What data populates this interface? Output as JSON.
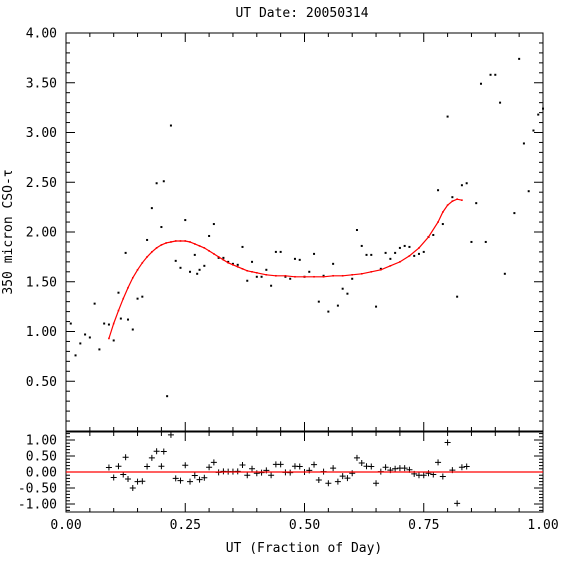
{
  "chart_data": [
    {
      "type": "scatter",
      "title": "UT Date: 20050314",
      "ylabel": "350 micron CSO-τ",
      "xlabel": "",
      "xlim": [
        0.0,
        1.0
      ],
      "ylim": [
        0.0,
        4.0
      ],
      "xticks": [
        "0.00",
        "0.25",
        "0.50",
        "0.75",
        "1.00"
      ],
      "yticks": [
        "0.50",
        "1.00",
        "1.50",
        "2.00",
        "2.50",
        "3.00",
        "3.50",
        "4.00"
      ],
      "series": [
        {
          "marker": "dot",
          "color": "#000000",
          "points": [
            [
              0.01,
              1.08
            ],
            [
              0.02,
              0.76
            ],
            [
              0.03,
              0.88
            ],
            [
              0.04,
              0.97
            ],
            [
              0.05,
              0.94
            ],
            [
              0.06,
              1.28
            ],
            [
              0.07,
              0.82
            ],
            [
              0.08,
              1.08
            ],
            [
              0.09,
              1.07
            ],
            [
              0.1,
              0.91
            ],
            [
              0.11,
              1.39
            ],
            [
              0.115,
              1.13
            ],
            [
              0.125,
              1.79
            ],
            [
              0.13,
              1.12
            ],
            [
              0.14,
              1.02
            ],
            [
              0.15,
              1.33
            ],
            [
              0.16,
              1.35
            ],
            [
              0.17,
              1.92
            ],
            [
              0.18,
              2.24
            ],
            [
              0.19,
              2.49
            ],
            [
              0.2,
              2.05
            ],
            [
              0.205,
              2.51
            ],
            [
              0.212,
              0.35
            ],
            [
              0.22,
              3.07
            ],
            [
              0.23,
              1.71
            ],
            [
              0.24,
              1.64
            ],
            [
              0.25,
              2.12
            ],
            [
              0.26,
              1.6
            ],
            [
              0.27,
              1.77
            ],
            [
              0.275,
              1.58
            ],
            [
              0.28,
              1.62
            ],
            [
              0.29,
              1.66
            ],
            [
              0.3,
              1.96
            ],
            [
              0.31,
              2.08
            ],
            [
              0.32,
              1.74
            ],
            [
              0.33,
              1.74
            ],
            [
              0.34,
              1.7
            ],
            [
              0.35,
              1.68
            ],
            [
              0.36,
              1.67
            ],
            [
              0.37,
              1.85
            ],
            [
              0.38,
              1.51
            ],
            [
              0.39,
              1.7
            ],
            [
              0.4,
              1.55
            ],
            [
              0.41,
              1.55
            ],
            [
              0.42,
              1.62
            ],
            [
              0.43,
              1.46
            ],
            [
              0.44,
              1.8
            ],
            [
              0.45,
              1.8
            ],
            [
              0.46,
              1.55
            ],
            [
              0.47,
              1.53
            ],
            [
              0.48,
              1.73
            ],
            [
              0.49,
              1.72
            ],
            [
              0.5,
              1.55
            ],
            [
              0.51,
              1.6
            ],
            [
              0.52,
              1.78
            ],
            [
              0.53,
              1.3
            ],
            [
              0.54,
              1.56
            ],
            [
              0.55,
              1.2
            ],
            [
              0.56,
              1.68
            ],
            [
              0.57,
              1.26
            ],
            [
              0.58,
              1.43
            ],
            [
              0.59,
              1.38
            ],
            [
              0.6,
              1.53
            ],
            [
              0.61,
              2.02
            ],
            [
              0.62,
              1.86
            ],
            [
              0.63,
              1.77
            ],
            [
              0.64,
              1.77
            ],
            [
              0.65,
              1.25
            ],
            [
              0.66,
              1.63
            ],
            [
              0.67,
              1.79
            ],
            [
              0.68,
              1.73
            ],
            [
              0.69,
              1.79
            ],
            [
              0.7,
              1.84
            ],
            [
              0.71,
              1.86
            ],
            [
              0.72,
              1.85
            ],
            [
              0.73,
              1.76
            ],
            [
              0.74,
              1.78
            ],
            [
              0.75,
              1.8
            ],
            [
              0.76,
              1.95
            ],
            [
              0.77,
              1.97
            ],
            [
              0.78,
              2.42
            ],
            [
              0.79,
              2.08
            ],
            [
              0.8,
              3.16
            ],
            [
              0.81,
              2.35
            ],
            [
              0.82,
              1.35
            ],
            [
              0.83,
              2.47
            ],
            [
              0.84,
              2.49
            ],
            [
              0.85,
              1.9
            ],
            [
              0.86,
              2.29
            ],
            [
              0.87,
              3.49
            ],
            [
              0.88,
              1.9
            ],
            [
              0.89,
              3.58
            ],
            [
              0.9,
              3.58
            ],
            [
              0.91,
              3.3
            ],
            [
              0.92,
              1.58
            ],
            [
              0.94,
              2.19
            ],
            [
              0.95,
              3.74
            ],
            [
              0.96,
              2.89
            ],
            [
              0.97,
              2.41
            ],
            [
              0.98,
              3.02
            ],
            [
              0.99,
              3.18
            ],
            [
              1.0,
              3.24
            ]
          ]
        },
        {
          "marker": "line",
          "color": "#ff0000",
          "points": [
            [
              0.09,
              0.93
            ],
            [
              0.1,
              1.08
            ],
            [
              0.11,
              1.21
            ],
            [
              0.12,
              1.33
            ],
            [
              0.13,
              1.44
            ],
            [
              0.14,
              1.54
            ],
            [
              0.15,
              1.62
            ],
            [
              0.16,
              1.69
            ],
            [
              0.17,
              1.75
            ],
            [
              0.18,
              1.8
            ],
            [
              0.19,
              1.84
            ],
            [
              0.2,
              1.87
            ],
            [
              0.21,
              1.89
            ],
            [
              0.22,
              1.9
            ],
            [
              0.23,
              1.91
            ],
            [
              0.24,
              1.91
            ],
            [
              0.25,
              1.91
            ],
            [
              0.26,
              1.9
            ],
            [
              0.27,
              1.88
            ],
            [
              0.28,
              1.86
            ],
            [
              0.29,
              1.84
            ],
            [
              0.3,
              1.81
            ],
            [
              0.31,
              1.78
            ],
            [
              0.32,
              1.75
            ],
            [
              0.33,
              1.72
            ],
            [
              0.34,
              1.69
            ],
            [
              0.35,
              1.67
            ],
            [
              0.36,
              1.65
            ],
            [
              0.37,
              1.63
            ],
            [
              0.38,
              1.61
            ],
            [
              0.39,
              1.6
            ],
            [
              0.4,
              1.59
            ],
            [
              0.42,
              1.57
            ],
            [
              0.44,
              1.56
            ],
            [
              0.46,
              1.56
            ],
            [
              0.48,
              1.55
            ],
            [
              0.5,
              1.55
            ],
            [
              0.52,
              1.55
            ],
            [
              0.54,
              1.55
            ],
            [
              0.56,
              1.56
            ],
            [
              0.58,
              1.56
            ],
            [
              0.6,
              1.57
            ],
            [
              0.62,
              1.58
            ],
            [
              0.64,
              1.6
            ],
            [
              0.66,
              1.62
            ],
            [
              0.68,
              1.66
            ],
            [
              0.7,
              1.7
            ],
            [
              0.72,
              1.76
            ],
            [
              0.74,
              1.84
            ],
            [
              0.76,
              1.95
            ],
            [
              0.78,
              2.1
            ],
            [
              0.79,
              2.2
            ],
            [
              0.8,
              2.27
            ],
            [
              0.81,
              2.31
            ],
            [
              0.82,
              2.33
            ],
            [
              0.83,
              2.32
            ]
          ]
        }
      ]
    },
    {
      "type": "scatter",
      "title": "",
      "xlabel": "UT (Fraction of Day)",
      "ylabel": "",
      "xlim": [
        0.0,
        1.0
      ],
      "ylim": [
        -1.25,
        1.25
      ],
      "xticks": [
        "0.00",
        "0.25",
        "0.50",
        "0.75",
        "1.00"
      ],
      "yticks": [
        "-1.00",
        "-0.50",
        "0.00",
        "0.50",
        "1.00"
      ],
      "series": [
        {
          "marker": "plus",
          "color": "#000000",
          "points": [
            [
              0.09,
              0.14
            ],
            [
              0.1,
              -0.17
            ],
            [
              0.11,
              0.18
            ],
            [
              0.12,
              -0.08
            ],
            [
              0.125,
              0.46
            ],
            [
              0.13,
              -0.22
            ],
            [
              0.14,
              -0.5
            ],
            [
              0.15,
              -0.3
            ],
            [
              0.16,
              -0.29
            ],
            [
              0.17,
              0.17
            ],
            [
              0.18,
              0.44
            ],
            [
              0.19,
              0.65
            ],
            [
              0.2,
              0.18
            ],
            [
              0.205,
              0.64
            ],
            [
              0.22,
              1.16
            ],
            [
              0.23,
              -0.2
            ],
            [
              0.24,
              -0.27
            ],
            [
              0.25,
              0.21
            ],
            [
              0.26,
              -0.3
            ],
            [
              0.27,
              -0.11
            ],
            [
              0.28,
              -0.24
            ],
            [
              0.29,
              -0.18
            ],
            [
              0.3,
              0.15
            ],
            [
              0.31,
              0.3
            ],
            [
              0.32,
              -0.01
            ],
            [
              0.33,
              0.02
            ],
            [
              0.34,
              0.01
            ],
            [
              0.35,
              0.01
            ],
            [
              0.36,
              0.02
            ],
            [
              0.37,
              0.22
            ],
            [
              0.38,
              -0.1
            ],
            [
              0.39,
              0.1
            ],
            [
              0.4,
              -0.04
            ],
            [
              0.41,
              -0.02
            ],
            [
              0.42,
              0.05
            ],
            [
              0.43,
              -0.1
            ],
            [
              0.44,
              0.24
            ],
            [
              0.45,
              0.24
            ],
            [
              0.46,
              -0.01
            ],
            [
              0.47,
              -0.02
            ],
            [
              0.48,
              0.18
            ],
            [
              0.49,
              0.17
            ],
            [
              0.5,
              0.0
            ],
            [
              0.51,
              0.05
            ],
            [
              0.52,
              0.23
            ],
            [
              0.53,
              -0.25
            ],
            [
              0.54,
              0.01
            ],
            [
              0.55,
              -0.35
            ],
            [
              0.56,
              0.12
            ],
            [
              0.57,
              -0.3
            ],
            [
              0.58,
              -0.13
            ],
            [
              0.59,
              -0.19
            ],
            [
              0.6,
              -0.04
            ],
            [
              0.61,
              0.44
            ],
            [
              0.62,
              0.28
            ],
            [
              0.63,
              0.18
            ],
            [
              0.64,
              0.17
            ],
            [
              0.65,
              -0.35
            ],
            [
              0.66,
              0.01
            ],
            [
              0.67,
              0.15
            ],
            [
              0.68,
              0.06
            ],
            [
              0.69,
              0.1
            ],
            [
              0.7,
              0.12
            ],
            [
              0.71,
              0.12
            ],
            [
              0.72,
              0.07
            ],
            [
              0.73,
              -0.06
            ],
            [
              0.74,
              -0.1
            ],
            [
              0.75,
              -0.1
            ],
            [
              0.76,
              -0.04
            ],
            [
              0.77,
              -0.08
            ],
            [
              0.78,
              0.3
            ],
            [
              0.79,
              -0.14
            ],
            [
              0.8,
              0.92
            ],
            [
              0.81,
              0.06
            ],
            [
              0.82,
              -0.98
            ],
            [
              0.83,
              0.15
            ],
            [
              0.84,
              0.17
            ]
          ]
        },
        {
          "marker": "hline",
          "color": "#ff0000",
          "points": [
            [
              0.0,
              0.0
            ],
            [
              1.0,
              0.0
            ]
          ]
        }
      ]
    }
  ]
}
